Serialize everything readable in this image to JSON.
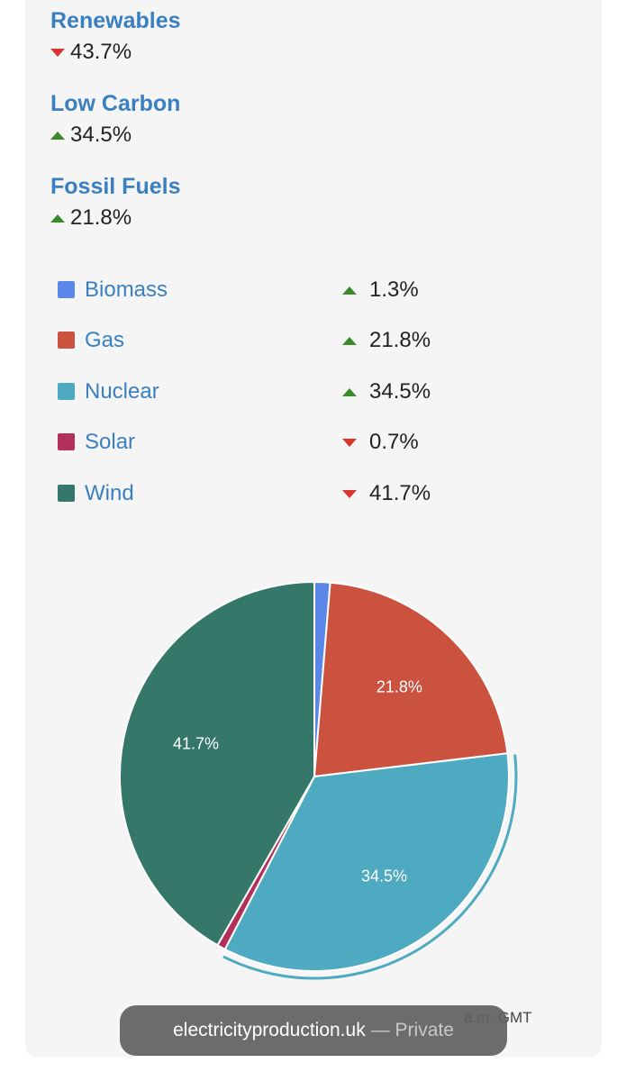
{
  "groups": [
    {
      "title": "Renewables",
      "value": "43.7%",
      "direction": "down"
    },
    {
      "title": "Low Carbon",
      "value": "34.5%",
      "direction": "up"
    },
    {
      "title": "Fossil Fuels",
      "value": "21.8%",
      "direction": "up"
    }
  ],
  "legend": [
    {
      "label": "Biomass",
      "value": "1.3%",
      "direction": "up",
      "color": "#5b87e8"
    },
    {
      "label": "Gas",
      "value": "21.8%",
      "direction": "up",
      "color": "#cc5240"
    },
    {
      "label": "Nuclear",
      "value": "34.5%",
      "direction": "up",
      "color": "#4eaac0"
    },
    {
      "label": "Solar",
      "value": "0.7%",
      "direction": "down",
      "color": "#b2305a"
    },
    {
      "label": "Wind",
      "value": "41.7%",
      "direction": "down",
      "color": "#35786a"
    }
  ],
  "chart_data": {
    "type": "pie",
    "slices": [
      {
        "name": "Biomass",
        "value": 1.3,
        "color": "#5b87e8",
        "label": ""
      },
      {
        "name": "Gas",
        "value": 21.8,
        "color": "#cc5240",
        "label": "21.8%"
      },
      {
        "name": "Nuclear",
        "value": 34.5,
        "color": "#4eaac0",
        "label": "34.5%",
        "highlighted": true
      },
      {
        "name": "Solar",
        "value": 0.7,
        "color": "#b2305a",
        "label": ""
      },
      {
        "name": "Wind",
        "value": 41.7,
        "color": "#35786a",
        "label": "41.7%"
      }
    ]
  },
  "footer": {
    "time_text": "a.m. GMT"
  },
  "browser_bar": {
    "domain": "electricityproduction.uk",
    "private": "— Private"
  },
  "colors": {
    "up": "#3b8a2a",
    "down": "#d9352b",
    "title": "#3a7fc0"
  }
}
